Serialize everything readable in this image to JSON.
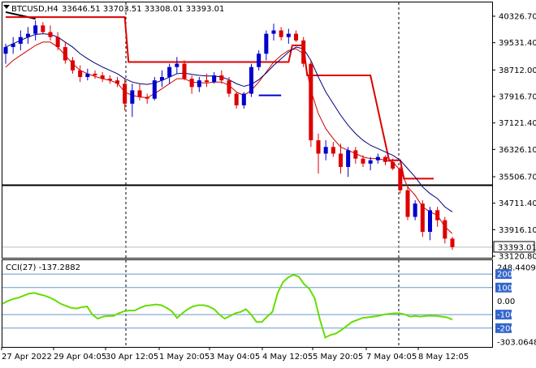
{
  "header": {
    "symbol": "BTCUSD,H4",
    "ohlc": "33646.51 33703.51 33308.01 33393.01"
  },
  "indicator_label": "CCI(27) -137.2882",
  "last_price_label": "33393.01",
  "colors": {
    "background": "#ffffff",
    "frame": "#000000",
    "bull_candle": "#0000cc",
    "bear_candle": "#dd0000",
    "grid": "#000000",
    "ma_fast": "#cc0000",
    "ma_slow": "#000080",
    "stop_line": "#dd0000",
    "support_line": "#000000",
    "marker": "#0000cc",
    "cci_line": "#66dd00",
    "cci_level": "#6699cc",
    "cci_level_label_bg": "#3366cc"
  },
  "chart_data": [
    {
      "type": "candlestick",
      "y_ticks": [
        "40326.70",
        "39531.40",
        "38712.00",
        "37916.70",
        "37121.40",
        "36326.10",
        "35506.70",
        "34711.40",
        "33916.10",
        "33120.80"
      ],
      "ylim": [
        33120.8,
        40326.7
      ],
      "x_ticks": [
        "27 Apr 2022",
        "29 Apr 04:05",
        "30 Apr 12:05",
        "1 May 20:05",
        "3 May 04:05",
        "4 May 12:05",
        "5 May 20:05",
        "7 May 04:05",
        "8 May 12:05"
      ],
      "candles": [
        {
          "o": 39200,
          "h": 39500,
          "l": 38900,
          "c": 39400
        },
        {
          "o": 39400,
          "h": 39700,
          "l": 39200,
          "c": 39500
        },
        {
          "o": 39500,
          "h": 39900,
          "l": 39300,
          "c": 39700
        },
        {
          "o": 39700,
          "h": 40000,
          "l": 39500,
          "c": 39800
        },
        {
          "o": 39800,
          "h": 40200,
          "l": 39600,
          "c": 40050
        },
        {
          "o": 40050,
          "h": 40150,
          "l": 39800,
          "c": 39850
        },
        {
          "o": 39850,
          "h": 40050,
          "l": 39600,
          "c": 39700
        },
        {
          "o": 39700,
          "h": 39850,
          "l": 39300,
          "c": 39400
        },
        {
          "o": 39400,
          "h": 39550,
          "l": 38900,
          "c": 39000
        },
        {
          "o": 39000,
          "h": 39100,
          "l": 38600,
          "c": 38700
        },
        {
          "o": 38700,
          "h": 38850,
          "l": 38350,
          "c": 38500
        },
        {
          "o": 38500,
          "h": 38750,
          "l": 38400,
          "c": 38600
        },
        {
          "o": 38600,
          "h": 38700,
          "l": 38450,
          "c": 38550
        },
        {
          "o": 38550,
          "h": 38650,
          "l": 38350,
          "c": 38450
        },
        {
          "o": 38450,
          "h": 38550,
          "l": 38300,
          "c": 38400
        },
        {
          "o": 38400,
          "h": 38500,
          "l": 38200,
          "c": 38300
        },
        {
          "o": 38300,
          "h": 38450,
          "l": 37500,
          "c": 37700
        },
        {
          "o": 37700,
          "h": 38300,
          "l": 37300,
          "c": 38100
        },
        {
          "o": 38100,
          "h": 38300,
          "l": 37800,
          "c": 37900
        },
        {
          "o": 37900,
          "h": 38000,
          "l": 37700,
          "c": 37850
        },
        {
          "o": 37850,
          "h": 38500,
          "l": 37800,
          "c": 38400
        },
        {
          "o": 38400,
          "h": 38700,
          "l": 38200,
          "c": 38500
        },
        {
          "o": 38500,
          "h": 38900,
          "l": 38300,
          "c": 38800
        },
        {
          "o": 38800,
          "h": 39100,
          "l": 38600,
          "c": 38900
        },
        {
          "o": 38900,
          "h": 39000,
          "l": 38400,
          "c": 38450
        },
        {
          "o": 38450,
          "h": 38550,
          "l": 38000,
          "c": 38200
        },
        {
          "o": 38200,
          "h": 38500,
          "l": 38050,
          "c": 38400
        },
        {
          "o": 38400,
          "h": 38600,
          "l": 38200,
          "c": 38350
        },
        {
          "o": 38350,
          "h": 38650,
          "l": 38300,
          "c": 38550
        },
        {
          "o": 38550,
          "h": 38700,
          "l": 38300,
          "c": 38400
        },
        {
          "o": 38400,
          "h": 38500,
          "l": 37900,
          "c": 38000
        },
        {
          "o": 38000,
          "h": 38050,
          "l": 37550,
          "c": 37650
        },
        {
          "o": 37650,
          "h": 38050,
          "l": 37550,
          "c": 38000
        },
        {
          "o": 38000,
          "h": 38900,
          "l": 37900,
          "c": 38800
        },
        {
          "o": 38800,
          "h": 39300,
          "l": 38700,
          "c": 39200
        },
        {
          "o": 39200,
          "h": 39900,
          "l": 39000,
          "c": 39800
        },
        {
          "o": 39800,
          "h": 40100,
          "l": 39600,
          "c": 39900
        },
        {
          "o": 39900,
          "h": 40000,
          "l": 39600,
          "c": 39700
        },
        {
          "o": 39700,
          "h": 39950,
          "l": 39500,
          "c": 39800
        },
        {
          "o": 39800,
          "h": 39900,
          "l": 39550,
          "c": 39600
        },
        {
          "o": 39600,
          "h": 39700,
          "l": 38800,
          "c": 38900
        },
        {
          "o": 38900,
          "h": 39000,
          "l": 36400,
          "c": 36600
        },
        {
          "o": 36600,
          "h": 36800,
          "l": 35600,
          "c": 36200
        },
        {
          "o": 36200,
          "h": 36600,
          "l": 36000,
          "c": 36400
        },
        {
          "o": 36400,
          "h": 36550,
          "l": 36100,
          "c": 36200
        },
        {
          "o": 36200,
          "h": 36500,
          "l": 35600,
          "c": 35800
        },
        {
          "o": 35800,
          "h": 36400,
          "l": 35500,
          "c": 36300
        },
        {
          "o": 36300,
          "h": 36400,
          "l": 35900,
          "c": 36050
        },
        {
          "o": 36050,
          "h": 36150,
          "l": 35800,
          "c": 35900
        },
        {
          "o": 35900,
          "h": 36100,
          "l": 35700,
          "c": 36000
        },
        {
          "o": 36000,
          "h": 36200,
          "l": 35900,
          "c": 36100
        },
        {
          "o": 36100,
          "h": 36150,
          "l": 35850,
          "c": 35950
        },
        {
          "o": 35950,
          "h": 36050,
          "l": 35700,
          "c": 35750
        },
        {
          "o": 35750,
          "h": 35800,
          "l": 35000,
          "c": 35100
        },
        {
          "o": 35100,
          "h": 35200,
          "l": 34200,
          "c": 34300
        },
        {
          "o": 34300,
          "h": 34800,
          "l": 34200,
          "c": 34700
        },
        {
          "o": 34700,
          "h": 34800,
          "l": 33700,
          "c": 33850
        },
        {
          "o": 33850,
          "h": 34600,
          "l": 33600,
          "c": 34500
        },
        {
          "o": 34500,
          "h": 34600,
          "l": 34000,
          "c": 34200
        },
        {
          "o": 34200,
          "h": 34300,
          "l": 33500,
          "c": 33646.51
        },
        {
          "o": 33646.51,
          "h": 33703.51,
          "l": 33308.01,
          "c": 33393.01
        }
      ],
      "ma_fast": [
        38800,
        39000,
        39150,
        39300,
        39450,
        39550,
        39550,
        39400,
        39150,
        38900,
        38700,
        38600,
        38520,
        38450,
        38400,
        38320,
        38050,
        37950,
        37900,
        37880,
        38000,
        38150,
        38300,
        38450,
        38450,
        38350,
        38330,
        38320,
        38350,
        38350,
        38250,
        38050,
        37950,
        38100,
        38350,
        38650,
        38950,
        39150,
        39300,
        39350,
        39200,
        38100,
        37400,
        36950,
        36650,
        36400,
        36300,
        36200,
        36100,
        36050,
        36050,
        36000,
        35950,
        35700,
        35200,
        34950,
        34600,
        34450,
        34350,
        34000,
        33800
      ],
      "ma_slow": [
        39400,
        39500,
        39600,
        39700,
        39780,
        39800,
        39780,
        39700,
        39550,
        39400,
        39200,
        39050,
        38920,
        38800,
        38700,
        38600,
        38450,
        38350,
        38300,
        38280,
        38320,
        38400,
        38500,
        38600,
        38620,
        38580,
        38550,
        38530,
        38530,
        38500,
        38420,
        38300,
        38220,
        38280,
        38420,
        38620,
        38850,
        39050,
        39250,
        39400,
        39350,
        39000,
        38500,
        38050,
        37700,
        37350,
        37050,
        36800,
        36600,
        36450,
        36350,
        36250,
        36150,
        36000,
        35750,
        35500,
        35200,
        35000,
        34850,
        34600,
        34450
      ],
      "stop_line": [
        {
          "i": 0,
          "v": 40300
        },
        {
          "i": 16,
          "v": 40300
        },
        {
          "i": 16.5,
          "v": 38950
        },
        {
          "i": 38,
          "v": 38950
        },
        {
          "i": 38.5,
          "v": 39450
        },
        {
          "i": 40,
          "v": 39450
        },
        {
          "i": 40.5,
          "v": 38550
        },
        {
          "i": 49,
          "v": 38550
        },
        {
          "i": 51.5,
          "v": 36000
        },
        {
          "i": 53,
          "v": 36000
        },
        {
          "i": 53.5,
          "v": 35450
        },
        {
          "i": 57.5,
          "v": 35450
        }
      ],
      "support_level": 35250,
      "marker_segment": {
        "from": 34,
        "to": 37,
        "v": 37950
      },
      "trend_segment": {
        "from": 0,
        "to": 4,
        "v0": 40450,
        "v1": 40250
      }
    },
    {
      "type": "line",
      "name": "CCI(27)",
      "ylim": [
        -303.0648,
        248.4409
      ],
      "y_tick_labels": [
        "248.4409",
        "200",
        "100",
        "0.00",
        "-100",
        "-200",
        "-303.0648"
      ],
      "levels": [
        200,
        100,
        -100,
        -200
      ],
      "values": [
        -20,
        0,
        15,
        25,
        40,
        55,
        60,
        50,
        40,
        25,
        5,
        -20,
        -35,
        -50,
        -55,
        -45,
        -40,
        -100,
        -130,
        -115,
        -110,
        -110,
        -90,
        -75,
        -70,
        -70,
        -50,
        -35,
        -30,
        -25,
        -30,
        -50,
        -75,
        -125,
        -90,
        -60,
        -40,
        -30,
        -30,
        -40,
        -60,
        -100,
        -130,
        -110,
        -90,
        -80,
        -60,
        -100,
        -155,
        -155,
        -115,
        -80,
        60,
        140,
        175,
        195,
        180,
        125,
        90,
        20,
        -140,
        -270,
        -250,
        -240,
        -215,
        -185,
        -155,
        -140,
        -125,
        -120,
        -115,
        -110,
        -100,
        -95,
        -90,
        -90,
        -98,
        -115,
        -110,
        -115,
        -110,
        -108,
        -110,
        -115,
        -120,
        -137.2882
      ]
    }
  ]
}
